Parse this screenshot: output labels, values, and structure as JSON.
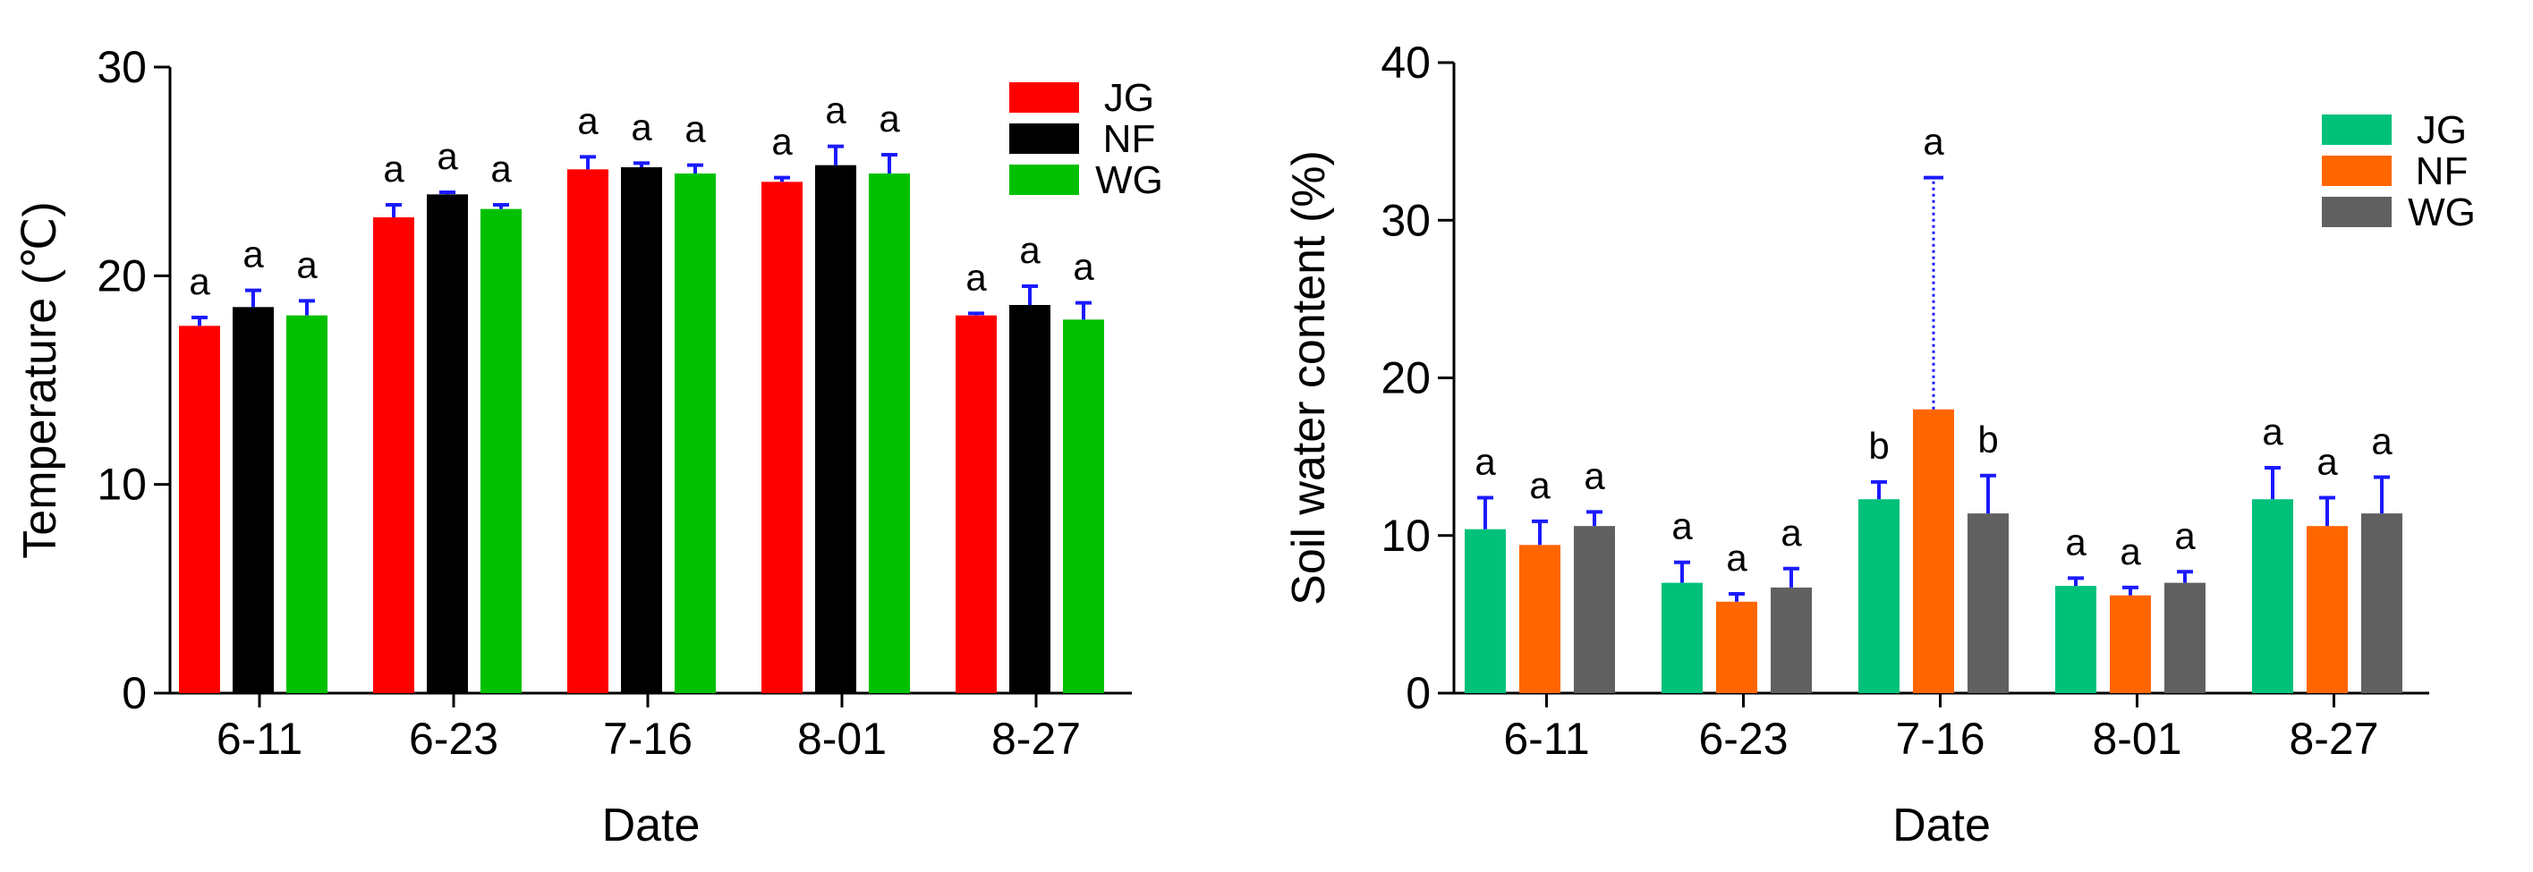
{
  "chart_data": [
    {
      "type": "bar",
      "title": "",
      "xlabel": "Date",
      "ylabel": "Temperature (℃)",
      "ylim": [
        0,
        30
      ],
      "yticks": [
        0,
        10,
        20,
        30
      ],
      "categories": [
        "6-11",
        "6-23",
        "7-16",
        "8-01",
        "8-27"
      ],
      "legend_position": "top-right",
      "error_bar_color": "#1a1aff",
      "series": [
        {
          "name": "JG",
          "color": "#ff0000",
          "values": [
            17.6,
            22.8,
            25.1,
            24.5,
            18.1
          ],
          "errors": [
            0.4,
            0.6,
            0.6,
            0.2,
            0.1
          ],
          "letters": [
            "a",
            "a",
            "a",
            "a",
            "a"
          ],
          "error_style": "solid"
        },
        {
          "name": "NF",
          "color": "#000000",
          "values": [
            18.5,
            23.9,
            25.2,
            25.3,
            18.6
          ],
          "errors": [
            0.8,
            0.1,
            0.2,
            0.9,
            0.9
          ],
          "letters": [
            "a",
            "a",
            "a",
            "a",
            "a"
          ],
          "error_style": "solid"
        },
        {
          "name": "WG",
          "color": "#00c000",
          "values": [
            18.1,
            23.2,
            24.9,
            24.9,
            17.9
          ],
          "errors": [
            0.7,
            0.2,
            0.4,
            0.9,
            0.8
          ],
          "letters": [
            "a",
            "a",
            "a",
            "a",
            "a"
          ],
          "error_style": "solid"
        }
      ]
    },
    {
      "type": "bar",
      "title": "",
      "xlabel": "Date",
      "ylabel": "Soil water content (%)",
      "ylim": [
        0,
        40
      ],
      "yticks": [
        0,
        10,
        20,
        30,
        40
      ],
      "categories": [
        "6-11",
        "6-23",
        "7-16",
        "8-01",
        "8-27"
      ],
      "legend_position": "top-right",
      "error_bar_color": "#1a1aff",
      "series": [
        {
          "name": "JG",
          "color": "#00c17a",
          "values": [
            10.4,
            7.0,
            12.3,
            6.8,
            12.3
          ],
          "errors": [
            2.0,
            1.3,
            1.1,
            0.5,
            2.0
          ],
          "letters": [
            "a",
            "a",
            "b",
            "a",
            "a"
          ],
          "error_style": "solid"
        },
        {
          "name": "NF",
          "color": "#ff6600",
          "values": [
            9.4,
            5.8,
            18.0,
            6.2,
            10.6
          ],
          "errors": [
            1.5,
            0.5,
            14.7,
            0.5,
            1.8
          ],
          "letters": [
            "a",
            "a",
            "a",
            "a",
            "a"
          ],
          "error_style": "solid",
          "dotted_error_index": 2
        },
        {
          "name": "WG",
          "color": "#606060",
          "values": [
            10.6,
            6.7,
            11.4,
            7.0,
            11.4
          ],
          "errors": [
            0.9,
            1.2,
            2.4,
            0.7,
            2.3
          ],
          "letters": [
            "a",
            "a",
            "b",
            "a",
            "a"
          ],
          "error_style": "solid"
        }
      ]
    }
  ]
}
